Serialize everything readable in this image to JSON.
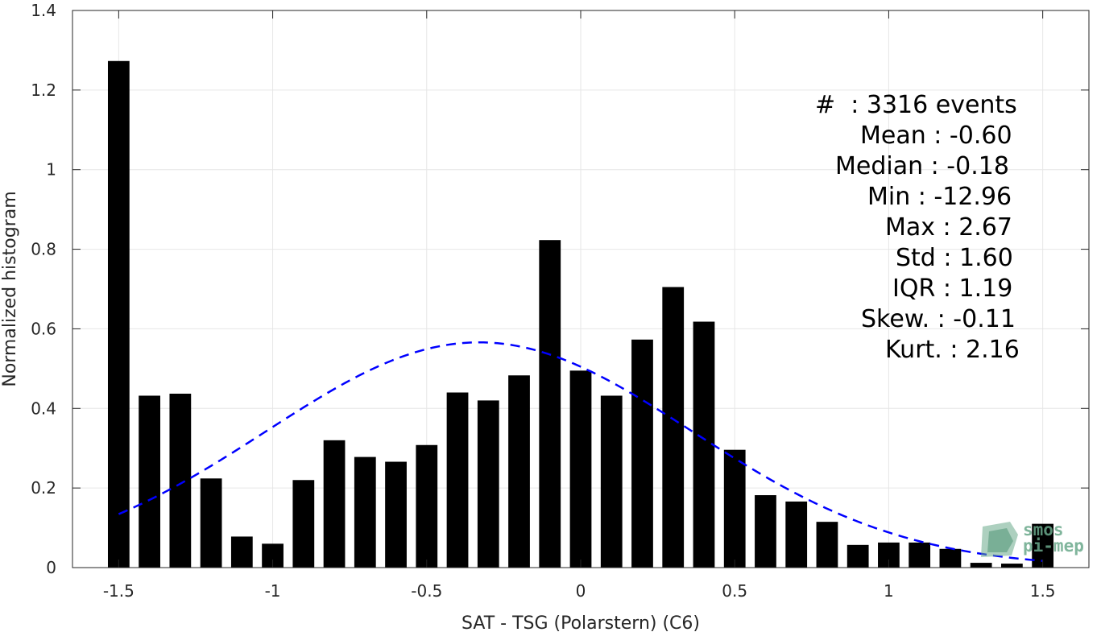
{
  "chart_data": {
    "type": "bar",
    "xlabel": "SAT - TSG (Polarstern) (C6)",
    "ylabel": "Normalized histogram",
    "xlim": [
      -1.65,
      1.65
    ],
    "ylim": [
      0,
      1.4
    ],
    "grid": true,
    "x_ticks": [
      "-1.5",
      "-1",
      "-0.5",
      "0",
      "0.5",
      "1",
      "1.5"
    ],
    "x_tick_values": [
      -1.5,
      -1,
      -0.5,
      0,
      0.5,
      1,
      1.5
    ],
    "y_ticks": [
      "0",
      "0.2",
      "0.4",
      "0.6",
      "0.8",
      "1",
      "1.2",
      "1.4"
    ],
    "y_tick_values": [
      0,
      0.2,
      0.4,
      0.6,
      0.8,
      1.0,
      1.2,
      1.4
    ],
    "bin_width": 0.1,
    "bar_color": "#000000",
    "x": [
      -1.5,
      -1.4,
      -1.3,
      -1.2,
      -1.1,
      -1.0,
      -0.9,
      -0.8,
      -0.7,
      -0.6,
      -0.5,
      -0.4,
      -0.3,
      -0.2,
      -0.1,
      0.0,
      0.1,
      0.2,
      0.3,
      0.4,
      0.5,
      0.6,
      0.7,
      0.8,
      0.9,
      1.0,
      1.1,
      1.2,
      1.3,
      1.4,
      1.5
    ],
    "values": [
      1.273,
      0.432,
      0.437,
      0.224,
      0.078,
      0.06,
      0.22,
      0.32,
      0.278,
      0.266,
      0.308,
      0.44,
      0.42,
      0.483,
      0.823,
      0.495,
      0.432,
      0.573,
      0.705,
      0.618,
      0.296,
      0.182,
      0.166,
      0.115,
      0.057,
      0.063,
      0.063,
      0.047,
      0.012,
      0.01,
      0.11
    ],
    "fit": {
      "style": "dashed",
      "color": "#0000ff",
      "mean": -0.33,
      "std": 0.69,
      "peak": 0.566,
      "x_range": [
        -1.5,
        1.5
      ]
    }
  },
  "stats": {
    "count": "#  : 3316 events",
    "mean": "Mean : -0.60",
    "median": "Median : -0.18",
    "min": "Min : -12.96",
    "max": "Max : 2.67",
    "std": "Std : 1.60",
    "iqr": "IQR : 1.19",
    "skew": "Skew. : -0.11",
    "kurt": "Kurt. : 2.16"
  },
  "logo": {
    "line1": "smos",
    "line2": "pi-mep",
    "color": "#6aa98b"
  }
}
